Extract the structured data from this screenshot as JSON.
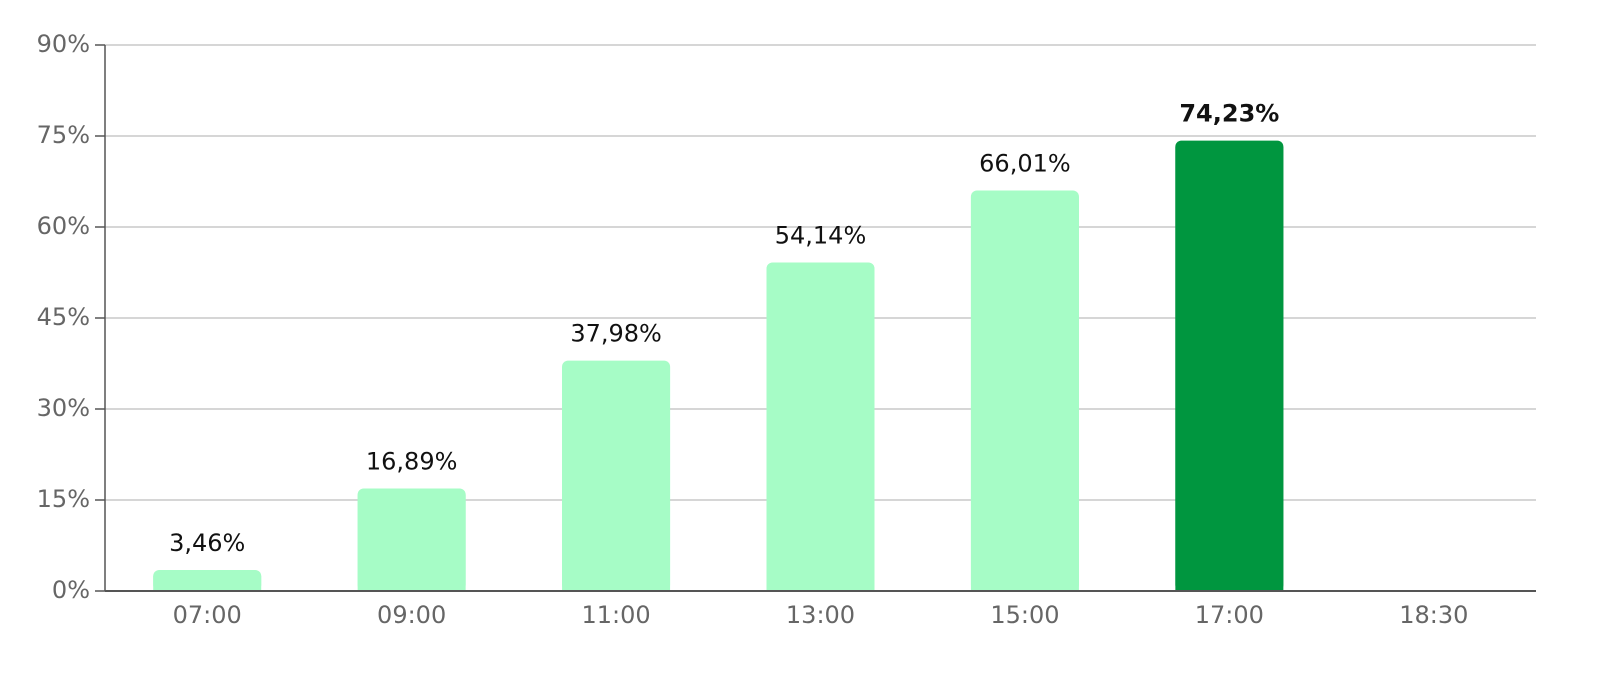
{
  "chart_data": {
    "type": "bar",
    "categories": [
      "07:00",
      "09:00",
      "11:00",
      "13:00",
      "15:00",
      "17:00",
      "18:30"
    ],
    "values": [
      3.46,
      16.89,
      37.98,
      54.14,
      66.01,
      74.23,
      null
    ],
    "value_labels": [
      "3,46%",
      "16,89%",
      "37,98%",
      "54,14%",
      "66,01%",
      "74,23%",
      null
    ],
    "colors": [
      "#a6fcc6",
      "#a6fcc6",
      "#a6fcc6",
      "#a6fcc6",
      "#a6fcc6",
      "#00963f",
      null
    ],
    "bold_labels": [
      false,
      false,
      false,
      false,
      false,
      true,
      false
    ],
    "ylim": [
      0,
      90
    ],
    "yticks": [
      {
        "value": 0,
        "label": "0%"
      },
      {
        "value": 15,
        "label": "15%"
      },
      {
        "value": 30,
        "label": "30%"
      },
      {
        "value": 45,
        "label": "45%"
      },
      {
        "value": 60,
        "label": "60%"
      },
      {
        "value": 75,
        "label": "75%"
      },
      {
        "value": 90,
        "label": "90%"
      }
    ],
    "grid": true
  }
}
